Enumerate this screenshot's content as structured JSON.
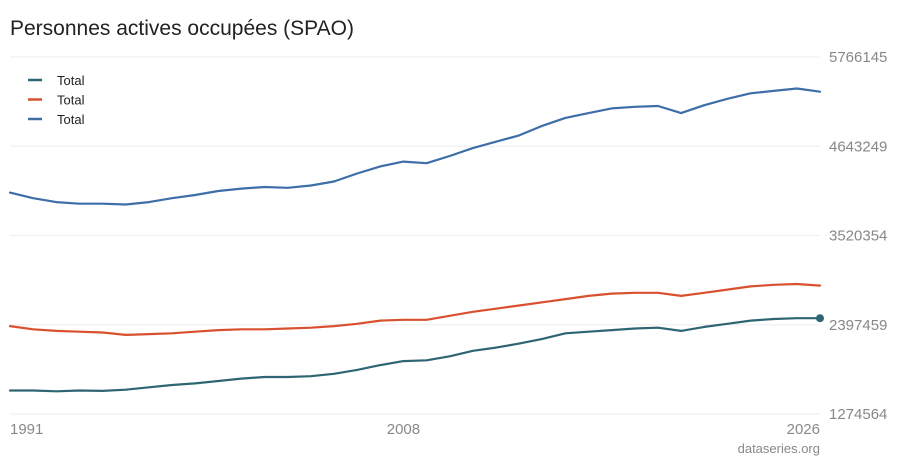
{
  "chart_data": {
    "type": "line",
    "title": "Personnes actives occupées (SPAO)",
    "xlabel": "",
    "ylabel": "",
    "x_ticks": [
      "1991",
      "2008",
      "2026"
    ],
    "y_ticks": [
      "5766145",
      "4643249",
      "3520354",
      "2397459",
      "1274564"
    ],
    "y_tick_values": [
      5766145,
      4643249,
      3520354,
      2397459,
      1274564
    ],
    "xlim": [
      1991,
      2026
    ],
    "ylim": [
      1274564,
      5766145
    ],
    "grid": true,
    "legend_position": "top-left",
    "credit": "dataseries.org",
    "series": [
      {
        "name": "Total",
        "color": "#2e6573",
        "x": [
          1991,
          1992,
          1993,
          1994,
          1995,
          1996,
          1997,
          1998,
          1999,
          2000,
          2001,
          2002,
          2003,
          2004,
          2005,
          2006,
          2007,
          2008,
          2009,
          2010,
          2011,
          2012,
          2013,
          2014,
          2015,
          2016,
          2017,
          2018,
          2019,
          2020,
          2021,
          2022,
          2023,
          2024,
          2025,
          2026
        ],
        "y": [
          1570000,
          1570000,
          1560000,
          1570000,
          1565000,
          1580000,
          1610000,
          1640000,
          1660000,
          1690000,
          1720000,
          1740000,
          1740000,
          1750000,
          1780000,
          1830000,
          1890000,
          1940000,
          1950000,
          2000000,
          2070000,
          2110000,
          2160000,
          2220000,
          2290000,
          2310000,
          2330000,
          2350000,
          2360000,
          2320000,
          2370000,
          2410000,
          2450000,
          2470000,
          2480000,
          2480000
        ]
      },
      {
        "name": "Total",
        "color": "#d9502f",
        "x": [
          1991,
          1992,
          1993,
          1994,
          1995,
          1996,
          1997,
          1998,
          1999,
          2000,
          2001,
          2002,
          2003,
          2004,
          2005,
          2006,
          2007,
          2008,
          2009,
          2010,
          2011,
          2012,
          2013,
          2014,
          2015,
          2016,
          2017,
          2018,
          2019,
          2020,
          2021,
          2022,
          2023,
          2024,
          2025,
          2026
        ],
        "y": [
          2380000,
          2340000,
          2320000,
          2310000,
          2300000,
          2270000,
          2280000,
          2290000,
          2310000,
          2330000,
          2340000,
          2340000,
          2350000,
          2360000,
          2380000,
          2410000,
          2450000,
          2460000,
          2460000,
          2510000,
          2560000,
          2600000,
          2640000,
          2680000,
          2720000,
          2760000,
          2790000,
          2800000,
          2800000,
          2760000,
          2800000,
          2840000,
          2880000,
          2900000,
          2910000,
          2890000
        ]
      },
      {
        "name": "Total",
        "color": "#3e6ea8",
        "x": [
          1991,
          1992,
          1993,
          1994,
          1995,
          1996,
          1997,
          1998,
          1999,
          2000,
          2001,
          2002,
          2003,
          2004,
          2005,
          2006,
          2007,
          2008,
          2009,
          2010,
          2011,
          2012,
          2013,
          2014,
          2015,
          2016,
          2017,
          2018,
          2019,
          2020,
          2021,
          2022,
          2023,
          2024,
          2025,
          2026
        ],
        "y": [
          4060000,
          3990000,
          3940000,
          3920000,
          3920000,
          3910000,
          3940000,
          3990000,
          4030000,
          4080000,
          4110000,
          4130000,
          4120000,
          4150000,
          4200000,
          4300000,
          4390000,
          4450000,
          4430000,
          4520000,
          4620000,
          4700000,
          4780000,
          4900000,
          5000000,
          5060000,
          5120000,
          5140000,
          5150000,
          5060000,
          5160000,
          5240000,
          5310000,
          5340000,
          5370000,
          5330000
        ]
      }
    ]
  }
}
